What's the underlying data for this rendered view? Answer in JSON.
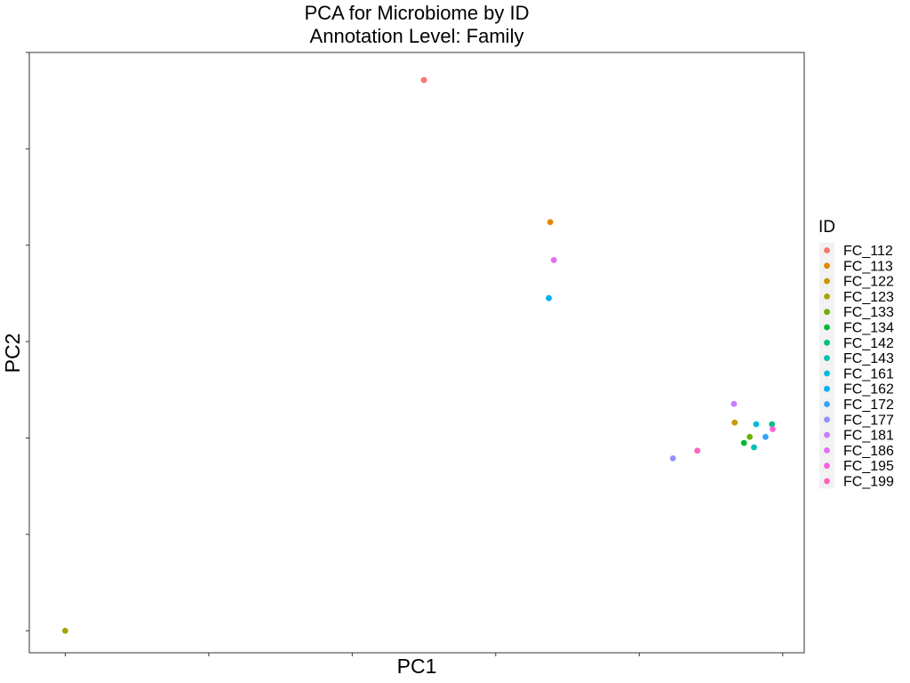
{
  "chart_data": {
    "type": "scatter",
    "title": "PCA for Microbiome by ID",
    "subtitle": "Annotation Level: Family",
    "xlabel": "PC1",
    "ylabel": "PC2",
    "x_tick_labels_shown": false,
    "y_tick_labels_shown": false,
    "grid": false,
    "legend": {
      "title": "ID",
      "position": "right"
    },
    "xlim": [
      -0.05,
      1.03
    ],
    "ylim": [
      -0.04,
      1.05
    ],
    "series": [
      {
        "name": "FC_112",
        "color": "#F8766D",
        "points": [
          {
            "x": 0.5,
            "y": 1.0
          }
        ]
      },
      {
        "name": "FC_113",
        "color": "#E58700",
        "points": [
          {
            "x": 0.676,
            "y": 0.742
          }
        ]
      },
      {
        "name": "FC_122",
        "color": "#C99800",
        "points": [
          {
            "x": 0.933,
            "y": 0.378
          }
        ]
      },
      {
        "name": "FC_123",
        "color": "#A3A500",
        "points": [
          {
            "x": 0.0,
            "y": 0.0
          }
        ]
      },
      {
        "name": "FC_133",
        "color": "#6BB100",
        "points": [
          {
            "x": 0.954,
            "y": 0.352
          }
        ]
      },
      {
        "name": "FC_134",
        "color": "#00BA38",
        "points": [
          {
            "x": 0.946,
            "y": 0.341
          }
        ]
      },
      {
        "name": "FC_142",
        "color": "#00BF7D",
        "points": [
          {
            "x": 0.985,
            "y": 0.375
          }
        ]
      },
      {
        "name": "FC_143",
        "color": "#00C0AF",
        "points": [
          {
            "x": 0.96,
            "y": 0.333
          }
        ]
      },
      {
        "name": "FC_161",
        "color": "#00BCD8",
        "points": [
          {
            "x": 0.963,
            "y": 0.375
          }
        ]
      },
      {
        "name": "FC_162",
        "color": "#00B0F6",
        "points": [
          {
            "x": 0.674,
            "y": 0.604
          }
        ]
      },
      {
        "name": "FC_172",
        "color": "#35A2FF",
        "points": [
          {
            "x": 0.976,
            "y": 0.352
          }
        ]
      },
      {
        "name": "FC_177",
        "color": "#9590FF",
        "points": [
          {
            "x": 0.847,
            "y": 0.313
          }
        ]
      },
      {
        "name": "FC_181",
        "color": "#C77CFF",
        "points": [
          {
            "x": 0.932,
            "y": 0.412
          }
        ]
      },
      {
        "name": "FC_186",
        "color": "#E76BF3",
        "points": [
          {
            "x": 0.681,
            "y": 0.673
          }
        ]
      },
      {
        "name": "FC_195",
        "color": "#FA62DB",
        "points": [
          {
            "x": 0.986,
            "y": 0.366
          }
        ]
      },
      {
        "name": "FC_199",
        "color": "#FF62BC",
        "points": [
          {
            "x": 0.881,
            "y": 0.327
          }
        ]
      }
    ]
  }
}
